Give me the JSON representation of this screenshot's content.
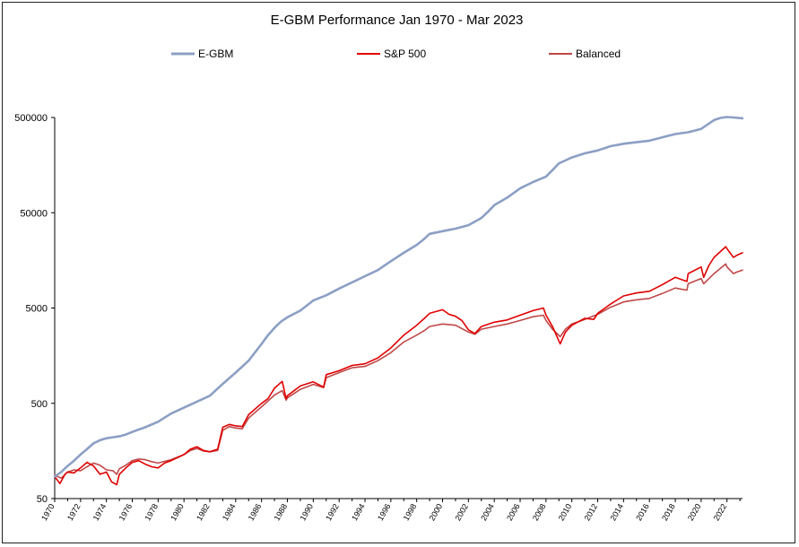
{
  "chart_data": {
    "type": "line",
    "title": "E-GBM Performance Jan 1970 - Mar 2023",
    "xlabel": "",
    "ylabel": "",
    "yscale": "log",
    "ylim": [
      50,
      500000
    ],
    "xlim": [
      1970.0,
      2023.2
    ],
    "y_ticks": [
      "500000",
      "50000",
      "5000",
      "500",
      "50"
    ],
    "y_tick_values": [
      500000,
      50000,
      5000,
      500,
      50
    ],
    "x_ticks": [
      "1970",
      "1972",
      "1974",
      "1976",
      "1978",
      "1980",
      "1982",
      "1984",
      "1986",
      "1988",
      "1990",
      "1992",
      "1994",
      "1996",
      "1998",
      "2000",
      "2002",
      "2004",
      "2006",
      "2008",
      "2010",
      "2012",
      "2014",
      "2016",
      "2018",
      "2020",
      "2022"
    ],
    "x_tick_values": [
      1970,
      1972,
      1974,
      1976,
      1978,
      1980,
      1982,
      1984,
      1986,
      1988,
      1990,
      1992,
      1994,
      1996,
      1998,
      2000,
      2002,
      2004,
      2006,
      2008,
      2010,
      2012,
      2014,
      2016,
      2018,
      2020,
      2022
    ],
    "grid": false,
    "legend_position": "top",
    "series": [
      {
        "name": "E-GBM",
        "color": "#8c9fc4",
        "x": [
          1970,
          1970.5,
          1971,
          1971.5,
          1972,
          1972.5,
          1973,
          1973.5,
          1974,
          1974.5,
          1975,
          1975.5,
          1976,
          1976.5,
          1977,
          1978,
          1979,
          1980,
          1981,
          1982,
          1983,
          1984,
          1985,
          1986,
          1986.5,
          1987,
          1987.5,
          1988,
          1989,
          1990,
          1991,
          1992,
          1993,
          1994,
          1995,
          1996,
          1997,
          1998,
          1998.5,
          1999,
          2000,
          2001,
          2002,
          2003,
          2003.5,
          2004,
          2005,
          2006,
          2007,
          2008,
          2008.5,
          2009,
          2010,
          2011,
          2012,
          2013,
          2014,
          2015,
          2016,
          2017,
          2018,
          2019,
          2020,
          2021,
          2021.5,
          2022,
          2022.5,
          2023.2
        ],
        "y": [
          85,
          95,
          110,
          125,
          145,
          165,
          190,
          205,
          215,
          220,
          225,
          235,
          250,
          265,
          280,
          320,
          390,
          450,
          520,
          600,
          800,
          1050,
          1400,
          2100,
          2600,
          3100,
          3600,
          4000,
          4700,
          6000,
          6800,
          8000,
          9300,
          10800,
          12500,
          15500,
          19000,
          23000,
          26000,
          30000,
          32000,
          34000,
          37000,
          44000,
          51000,
          60000,
          72000,
          90000,
          105000,
          120000,
          140000,
          165000,
          190000,
          210000,
          225000,
          250000,
          265000,
          275000,
          285000,
          310000,
          335000,
          350000,
          380000,
          470000,
          495000,
          505000,
          500000,
          490000
        ]
      },
      {
        "name": "S&P 500",
        "color": "#e00000",
        "x": [
          1970,
          1970.4,
          1970.8,
          1971,
          1971.5,
          1972,
          1972.5,
          1973,
          1973.5,
          1974,
          1974.4,
          1974.8,
          1975,
          1975.5,
          1976,
          1976.5,
          1977,
          1977.5,
          1978,
          1978.5,
          1979,
          1980,
          1980.5,
          1981,
          1981.5,
          1982,
          1982.6,
          1983,
          1983.5,
          1984,
          1984.5,
          1985,
          1986,
          1986.5,
          1987,
          1987.6,
          1987.9,
          1988,
          1989,
          1990,
          1990.8,
          1991,
          1992,
          1993,
          1994,
          1995,
          1996,
          1997,
          1998,
          1998.6,
          1999,
          2000,
          2000.5,
          2001,
          2001.5,
          2002,
          2002.5,
          2003,
          2004,
          2005,
          2006,
          2007,
          2007.8,
          2008,
          2008.5,
          2009.1,
          2009.5,
          2010,
          2011,
          2011.7,
          2012,
          2013,
          2014,
          2015,
          2016,
          2017,
          2018,
          2018.9,
          2019,
          2020,
          2020.2,
          2020.6,
          2021,
          2021.9,
          2022,
          2022.5,
          2022.8,
          2023.2
        ],
        "y": [
          85,
          72,
          90,
          95,
          93,
          105,
          120,
          110,
          90,
          95,
          75,
          70,
          90,
          105,
          120,
          125,
          115,
          108,
          105,
          118,
          125,
          145,
          165,
          175,
          160,
          155,
          165,
          280,
          300,
          290,
          285,
          380,
          500,
          560,
          720,
          850,
          560,
          600,
          760,
          840,
          740,
          1000,
          1100,
          1250,
          1300,
          1500,
          1900,
          2600,
          3300,
          3900,
          4400,
          4800,
          4300,
          4100,
          3700,
          2950,
          2700,
          3200,
          3550,
          3750,
          4200,
          4700,
          5000,
          4200,
          3200,
          2100,
          2800,
          3300,
          3900,
          3800,
          4400,
          5500,
          6700,
          7200,
          7500,
          8800,
          10500,
          9500,
          11500,
          13500,
          10500,
          14000,
          17000,
          22000,
          21000,
          17000,
          18000,
          19000
        ]
      },
      {
        "name": "Balanced",
        "color": "#c04848",
        "x": [
          1970,
          1970.5,
          1971,
          1971.5,
          1972,
          1972.5,
          1973,
          1973.5,
          1974,
          1974.5,
          1974.8,
          1975,
          1975.5,
          1976,
          1976.5,
          1977,
          1977.5,
          1978,
          1979,
          1980,
          1980.5,
          1981,
          1981.5,
          1982,
          1982.6,
          1983,
          1983.5,
          1984,
          1984.5,
          1985,
          1986,
          1987,
          1987.6,
          1987.9,
          1988,
          1989,
          1990,
          1990.8,
          1991,
          1992,
          1993,
          1994,
          1995,
          1996,
          1997,
          1998,
          1998.6,
          1999,
          2000,
          2001,
          2002,
          2002.5,
          2003,
          2004,
          2005,
          2006,
          2007,
          2007.8,
          2008,
          2008.5,
          2009.1,
          2009.5,
          2010,
          2011,
          2012,
          2013,
          2014,
          2015,
          2016,
          2017,
          2018,
          2018.9,
          2019,
          2020,
          2020.2,
          2021,
          2021.9,
          2022,
          2022.5,
          2022.8,
          2023.2
        ],
        "y": [
          88,
          82,
          95,
          100,
          98,
          108,
          118,
          112,
          100,
          98,
          90,
          103,
          112,
          125,
          130,
          128,
          122,
          118,
          128,
          145,
          160,
          168,
          158,
          155,
          160,
          260,
          285,
          275,
          270,
          350,
          460,
          610,
          680,
          540,
          570,
          700,
          790,
          730,
          930,
          1050,
          1180,
          1220,
          1400,
          1700,
          2200,
          2600,
          2900,
          3200,
          3400,
          3300,
          2800,
          2650,
          3000,
          3200,
          3400,
          3700,
          4050,
          4200,
          3700,
          3000,
          2500,
          3000,
          3400,
          3800,
          4300,
          5100,
          5800,
          6100,
          6300,
          7100,
          8100,
          7700,
          9000,
          10200,
          9000,
          11500,
          14500,
          13500,
          11500,
          12000,
          12500
        ]
      }
    ]
  }
}
